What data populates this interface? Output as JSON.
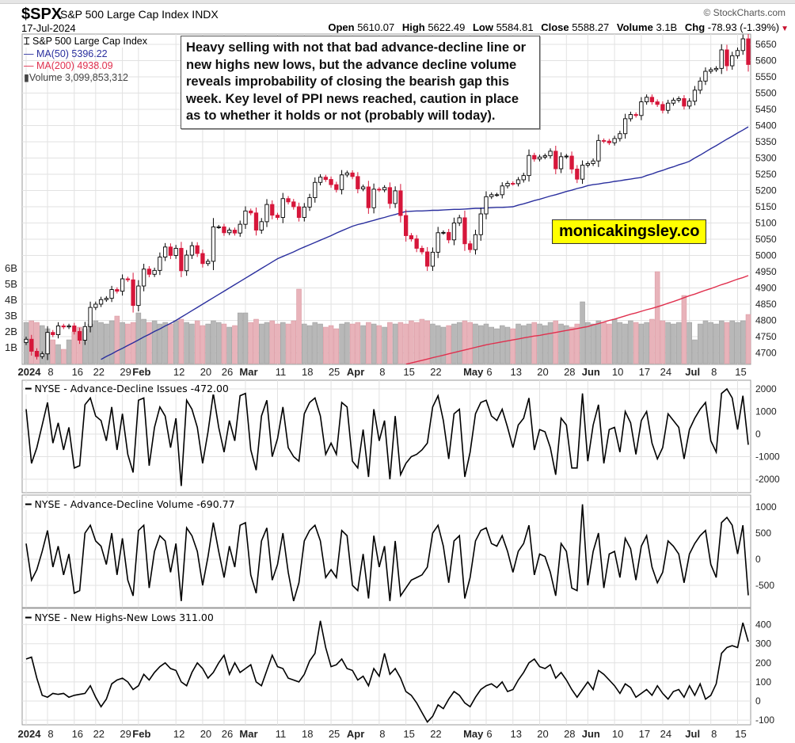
{
  "header": {
    "symbol": "$SPX",
    "name": "S&P 500 Large Cap Index INDX",
    "date": "17-Jul-2024",
    "copyright": "© StockCharts.com",
    "open_label": "Open",
    "open": "5610.07",
    "high_label": "High",
    "high": "5622.49",
    "low_label": "Low",
    "low": "5584.81",
    "close_label": "Close",
    "close": "5588.27",
    "volume_label": "Volume",
    "volume": "3.1B",
    "chg_label": "Chg",
    "chg": "-78.93 (-1.39%)"
  },
  "legend": {
    "price": "S&P 500 Large Cap Index",
    "ma50": "MA(50) 5396.22",
    "ma200": "MA(200) 4938.09",
    "volume": "Volume 3,099,853,312"
  },
  "annotation": "Heavy selling with not that bad advance-decline line or new highs new lows, but the advance decline volume reveals improbability of closing the bearish gap this week. Key level of PPI news reached, caution in place as to whether it holds or not (probably will today).",
  "watermark": "monicakingsley.co",
  "colors": {
    "up": "#000000",
    "down": "#d6163a",
    "ma50": "#2a2f9e",
    "ma200": "#e0304e",
    "vol_up": "#b8b8b8",
    "vol_down": "#e8b3ba",
    "grid": "#e2e2e2"
  },
  "chart_data": [
    {
      "type": "candlestick",
      "panel": "price",
      "title": "$SPX S&P 500 Large Cap Index INDX",
      "ylim": [
        4667,
        5682
      ],
      "y_ticks": [
        "5650",
        "5600",
        "5550",
        "5500",
        "5450",
        "5400",
        "5350",
        "5300",
        "5250",
        "5200",
        "5150",
        "5100",
        "5050",
        "5000",
        "4950",
        "4900",
        "4850",
        "4800",
        "4750",
        "4700"
      ],
      "vol_ticks": [
        "6B",
        "5B",
        "4B",
        "3B",
        "2B",
        "1B"
      ],
      "x_ticks": [
        {
          "label": "2024",
          "bold": true
        },
        {
          "label": "8"
        },
        {
          "label": "16"
        },
        {
          "label": "22"
        },
        {
          "label": "29"
        },
        {
          "label": "Feb",
          "bold": true
        },
        {
          "label": "12"
        },
        {
          "label": "20"
        },
        {
          "label": "26"
        },
        {
          "label": "Mar",
          "bold": true
        },
        {
          "label": "11"
        },
        {
          "label": "18"
        },
        {
          "label": "25"
        },
        {
          "label": "Apr",
          "bold": true
        },
        {
          "label": "8"
        },
        {
          "label": "15"
        },
        {
          "label": "22"
        },
        {
          "label": "May",
          "bold": true
        },
        {
          "label": "6"
        },
        {
          "label": "13"
        },
        {
          "label": "20"
        },
        {
          "label": "28"
        },
        {
          "label": "Jun",
          "bold": true
        },
        {
          "label": "10"
        },
        {
          "label": "17"
        },
        {
          "label": "24"
        },
        {
          "label": "Jul",
          "bold": true
        },
        {
          "label": "8"
        },
        {
          "label": "15"
        }
      ],
      "close": [
        4742,
        4705,
        4689,
        4697,
        4763,
        4756,
        4783,
        4780,
        4783,
        4766,
        4739,
        4781,
        4840,
        4850,
        4864,
        4868,
        4895,
        4890,
        4928,
        4925,
        4846,
        4906,
        4958,
        4942,
        4954,
        4995,
        5026,
        5000,
        5022,
        4953,
        5001,
        5030,
        5006,
        4975,
        4982,
        5088,
        5088,
        5070,
        5078,
        5069,
        5096,
        5137,
        5131,
        5078,
        5104,
        5157,
        5124,
        5117,
        5175,
        5165,
        5150,
        5117,
        5149,
        5178,
        5225,
        5241,
        5234,
        5218,
        5203,
        5248,
        5254,
        5243,
        5205,
        5211,
        5147,
        5204,
        5202,
        5209,
        5160,
        5199,
        5123,
        5061,
        5051,
        5022,
        5011,
        4967,
        5010,
        5070,
        5071,
        5048,
        5100,
        5116,
        5036,
        5018,
        5064,
        5128,
        5181,
        5187,
        5187,
        5214,
        5222,
        5221,
        5233,
        5246,
        5308,
        5297,
        5303,
        5307,
        5321,
        5267,
        5304,
        5306,
        5266,
        5235,
        5278,
        5283,
        5291,
        5354,
        5352,
        5347,
        5360,
        5375,
        5421,
        5434,
        5431,
        5473,
        5487,
        5473,
        5465,
        5447,
        5469,
        5478,
        5483,
        5460,
        5475,
        5509,
        5537,
        5567,
        5572,
        5576,
        5633,
        5584,
        5615,
        5631,
        5667,
        5588
      ],
      "volume_billions": [
        2.6,
        2.7,
        2.6,
        2.4,
        2.2,
        1.5,
        1.2,
        0.9,
        1.5,
        2.0,
        2.3,
        2.2,
        2.5,
        2.7,
        2.6,
        2.5,
        2.7,
        3.0,
        2.6,
        2.5,
        2.6,
        3.2,
        2.8,
        2.6,
        2.7,
        2.5,
        2.6,
        2.5,
        2.7,
        2.8,
        2.6,
        2.5,
        2.7,
        2.4,
        2.5,
        2.7,
        2.6,
        2.5,
        2.3,
        2.4,
        3.2,
        3.2,
        2.6,
        2.8,
        2.5,
        2.6,
        2.7,
        2.5,
        2.6,
        2.5,
        2.7,
        4.7,
        2.5,
        2.4,
        2.6,
        2.5,
        2.3,
        2.4,
        2.2,
        2.5,
        2.6,
        2.5,
        2.6,
        2.4,
        2.6,
        2.5,
        2.4,
        2.3,
        2.6,
        2.5,
        2.6,
        2.5,
        2.7,
        2.6,
        2.8,
        2.7,
        2.5,
        2.4,
        2.3,
        2.4,
        2.5,
        2.6,
        2.7,
        2.6,
        2.5,
        2.4,
        2.5,
        2.3,
        2.2,
        2.4,
        2.3,
        2.2,
        2.5,
        2.4,
        2.5,
        2.6,
        2.5,
        2.4,
        2.6,
        2.7,
        2.5,
        2.4,
        2.3,
        2.5,
        3.9,
        2.6,
        2.5,
        2.7,
        2.6,
        2.5,
        2.8,
        2.6,
        2.5,
        2.7,
        2.6,
        2.5,
        2.6,
        2.8,
        5.8,
        2.7,
        2.6,
        2.5,
        2.6,
        4.3,
        2.6,
        1.5,
        2.5,
        2.7,
        2.6,
        2.5,
        2.7,
        2.6,
        2.7,
        2.6,
        2.7,
        3.1
      ],
      "ma50": [
        null,
        null,
        null,
        null,
        null,
        null,
        null,
        null,
        null,
        null,
        null,
        null,
        null,
        null,
        4680,
        4689,
        4697,
        4706,
        4714,
        4723,
        4731,
        4740,
        4749,
        4757,
        4766,
        4774,
        4783,
        4791,
        4800,
        4810,
        4820,
        4830,
        4840,
        4850,
        4860,
        4870,
        4880,
        4890,
        4900,
        4910,
        4920,
        4930,
        4940,
        4950,
        4960,
        4970,
        4980,
        4990,
        4997,
        5004,
        5011,
        5019,
        5026,
        5033,
        5040,
        5047,
        5054,
        5061,
        5069,
        5076,
        5083,
        5090,
        5095,
        5099,
        5104,
        5108,
        5113,
        5117,
        5122,
        5126,
        5131,
        5135,
        5136,
        5137,
        5137,
        5138,
        5139,
        5139,
        5140,
        5141,
        5142,
        5142,
        5143,
        5144,
        5145,
        5145,
        5146,
        5147,
        5148,
        5148,
        5149,
        5150,
        5155,
        5159,
        5164,
        5169,
        5173,
        5178,
        5183,
        5187,
        5192,
        5197,
        5201,
        5206,
        5210,
        5215,
        5218,
        5220,
        5223,
        5225,
        5228,
        5230,
        5233,
        5235,
        5238,
        5240,
        5246,
        5251,
        5257,
        5262,
        5268,
        5273,
        5279,
        5284,
        5290,
        5300,
        5309,
        5319,
        5329,
        5338,
        5348,
        5358,
        5367,
        5377,
        5386,
        5396
      ],
      "ma200": [
        null,
        null,
        null,
        null,
        null,
        null,
        null,
        null,
        null,
        null,
        null,
        null,
        null,
        null,
        null,
        null,
        null,
        null,
        null,
        null,
        null,
        null,
        null,
        null,
        null,
        null,
        null,
        null,
        null,
        null,
        null,
        null,
        null,
        null,
        null,
        null,
        null,
        null,
        null,
        null,
        null,
        null,
        null,
        null,
        null,
        null,
        null,
        null,
        null,
        null,
        null,
        null,
        null,
        null,
        null,
        null,
        null,
        null,
        null,
        null,
        null,
        null,
        null,
        null,
        null,
        null,
        null,
        null,
        null,
        null,
        null,
        4665,
        4669,
        4673,
        4677,
        4681,
        4685,
        4689,
        4693,
        4697,
        4701,
        4705,
        4709,
        4713,
        4717,
        4721,
        4725,
        4728,
        4731,
        4734,
        4737,
        4740,
        4743,
        4746,
        4749,
        4752,
        4754,
        4757,
        4760,
        4763,
        4766,
        4769,
        4772,
        4775,
        4778,
        4781,
        4786,
        4790,
        4795,
        4800,
        4804,
        4809,
        4814,
        4819,
        4823,
        4828,
        4833,
        4837,
        4842,
        4847,
        4853,
        4858,
        4864,
        4870,
        4876,
        4881,
        4887,
        4893,
        4898,
        4904,
        4910,
        4915,
        4921,
        4927,
        4932,
        4938
      ]
    },
    {
      "type": "line",
      "panel": "adv_decl_issues",
      "title": "NYSE - Advance-Decline Issues -472.00",
      "ylim": [
        -2400,
        2200
      ],
      "y_ticks": [
        "2000",
        "1000",
        "0",
        "-1000",
        "-2000"
      ],
      "values": [
        1100,
        -1300,
        -600,
        400,
        1400,
        -400,
        500,
        -700,
        300,
        -1500,
        -1400,
        1300,
        1600,
        800,
        600,
        -300,
        1200,
        -700,
        900,
        -900,
        -1700,
        1500,
        1600,
        -1400,
        300,
        1200,
        800,
        -600,
        700,
        -2300,
        1500,
        1100,
        300,
        -1300,
        100,
        1800,
        300,
        -800,
        600,
        -300,
        1700,
        1800,
        -700,
        -1600,
        800,
        1500,
        -1000,
        -200,
        1200,
        -600,
        -1000,
        -1200,
        900,
        1400,
        1600,
        800,
        -900,
        -400,
        -900,
        1400,
        1200,
        -1200,
        -1500,
        200,
        -1900,
        1100,
        -300,
        600,
        -2000,
        800,
        -1800,
        -1300,
        -1000,
        -900,
        -700,
        -400,
        1200,
        1700,
        600,
        -1100,
        900,
        1100,
        -1900,
        -800,
        900,
        1400,
        1500,
        800,
        600,
        1100,
        300,
        -600,
        400,
        700,
        1600,
        -700,
        200,
        100,
        -600,
        -1800,
        700,
        400,
        -1500,
        -1500,
        1800,
        -1200,
        400,
        1300,
        -1300,
        200,
        300,
        -800,
        1000,
        500,
        -900,
        600,
        1000,
        -400,
        -1100,
        -600,
        900,
        600,
        300,
        -1100,
        200,
        700,
        1100,
        1400,
        -300,
        -800,
        1800,
        2000,
        1600,
        200,
        1700,
        -472
      ]
    },
    {
      "type": "line",
      "panel": "adv_decl_volume",
      "title": "NYSE - Advance-Decline Volume -690.77",
      "ylim": [
        -900,
        1100
      ],
      "y_ticks": [
        "1000",
        "500",
        "0",
        "-500"
      ],
      "values": [
        300,
        -400,
        -200,
        150,
        550,
        -150,
        250,
        -300,
        100,
        -650,
        -600,
        500,
        650,
        350,
        250,
        -100,
        500,
        -300,
        400,
        -400,
        -700,
        550,
        650,
        -550,
        150,
        450,
        350,
        -250,
        300,
        -800,
        600,
        450,
        150,
        -500,
        50,
        700,
        150,
        -350,
        250,
        -150,
        650,
        700,
        -300,
        -650,
        350,
        600,
        -400,
        -100,
        500,
        -250,
        -800,
        -450,
        350,
        550,
        650,
        350,
        -350,
        -200,
        -350,
        550,
        450,
        -500,
        -600,
        100,
        -750,
        450,
        -150,
        250,
        -800,
        350,
        -700,
        -550,
        -400,
        -350,
        -300,
        -150,
        500,
        650,
        250,
        -450,
        350,
        450,
        -750,
        -350,
        350,
        550,
        600,
        300,
        250,
        450,
        150,
        -250,
        150,
        300,
        650,
        -300,
        100,
        50,
        -250,
        -700,
        300,
        150,
        -550,
        -600,
        1050,
        -500,
        150,
        500,
        -550,
        100,
        150,
        -350,
        400,
        200,
        -400,
        250,
        450,
        -150,
        -450,
        -250,
        350,
        250,
        100,
        -450,
        100,
        300,
        450,
        550,
        -100,
        -350,
        700,
        800,
        650,
        100,
        650,
        -690.77
      ]
    },
    {
      "type": "line",
      "panel": "new_highs_new_lows",
      "title": "NYSE - New Highs-New Lows 311.00",
      "ylim": [
        -125,
        480
      ],
      "y_ticks": [
        "400",
        "300",
        "200",
        "100",
        "0",
        "-100"
      ],
      "values": [
        220,
        230,
        120,
        30,
        20,
        40,
        35,
        40,
        20,
        30,
        35,
        40,
        80,
        20,
        -30,
        10,
        90,
        110,
        120,
        100,
        60,
        80,
        140,
        110,
        150,
        180,
        200,
        170,
        160,
        100,
        80,
        150,
        200,
        170,
        120,
        150,
        200,
        240,
        140,
        200,
        150,
        170,
        190,
        100,
        80,
        160,
        240,
        180,
        170,
        120,
        110,
        100,
        140,
        210,
        250,
        420,
        280,
        180,
        190,
        220,
        170,
        160,
        110,
        130,
        80,
        170,
        130,
        250,
        140,
        170,
        120,
        50,
        30,
        -10,
        -60,
        -110,
        -80,
        -20,
        -40,
        10,
        50,
        30,
        -10,
        -30,
        20,
        60,
        80,
        90,
        70,
        100,
        50,
        60,
        110,
        150,
        200,
        220,
        180,
        170,
        190,
        120,
        150,
        110,
        60,
        20,
        60,
        100,
        60,
        160,
        140,
        110,
        80,
        40,
        90,
        70,
        20,
        40,
        60,
        30,
        80,
        40,
        10,
        50,
        60,
        20,
        80,
        30,
        90,
        10,
        30,
        90,
        250,
        280,
        290,
        280,
        410,
        311
      ]
    }
  ]
}
